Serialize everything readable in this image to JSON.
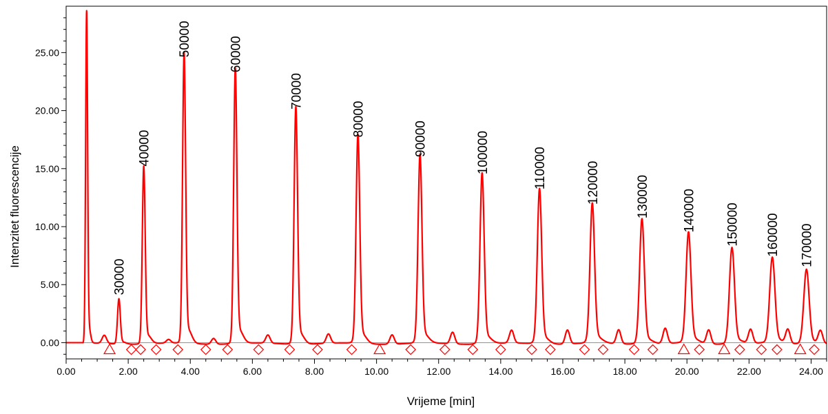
{
  "chart_data": {
    "type": "line",
    "title": "",
    "xlabel": "Vrijeme [min]",
    "ylabel": "Intenzitet fluorescencije",
    "xlim": [
      0,
      24.5
    ],
    "ylim": [
      -1.4,
      29.0
    ],
    "x_ticks": [
      "0.00",
      "2.00",
      "4.00",
      "6.00",
      "8.00",
      "10.00",
      "12.00",
      "14.00",
      "16.00",
      "18.00",
      "20.00",
      "22.00",
      "24.00"
    ],
    "y_ticks": [
      "0.00",
      "5.00",
      "10.00",
      "15.00",
      "20.00",
      "25.00"
    ],
    "grid": false,
    "legend": "none",
    "colors": {
      "trace": "#ff0000",
      "axis": "#000000",
      "markers": "#ff0000"
    },
    "baseline": 0.0,
    "solvent_peak": {
      "x": 0.66,
      "y": 28.3
    },
    "peaks": [
      {
        "label": "30000",
        "x": 1.7,
        "y": 3.8
      },
      {
        "label": "40000",
        "x": 2.5,
        "y": 14.9
      },
      {
        "label": "50000",
        "x": 3.8,
        "y": 24.3
      },
      {
        "label": "60000",
        "x": 5.45,
        "y": 23.0
      },
      {
        "label": "70000",
        "x": 7.4,
        "y": 19.8
      },
      {
        "label": "80000",
        "x": 9.4,
        "y": 17.4
      },
      {
        "label": "90000",
        "x": 11.4,
        "y": 15.7
      },
      {
        "label": "100000",
        "x": 13.4,
        "y": 14.2
      },
      {
        "label": "110000",
        "x": 15.25,
        "y": 12.9
      },
      {
        "label": "120000",
        "x": 16.95,
        "y": 11.6
      },
      {
        "label": "130000",
        "x": 18.55,
        "y": 10.4
      },
      {
        "label": "140000",
        "x": 20.05,
        "y": 9.2
      },
      {
        "label": "150000",
        "x": 21.45,
        "y": 8.0
      },
      {
        "label": "160000",
        "x": 22.75,
        "y": 7.1
      },
      {
        "label": "170000",
        "x": 23.85,
        "y": 6.2
      }
    ],
    "minor_peaks": [
      {
        "x": 1.23,
        "y": 0.7
      },
      {
        "x": 3.3,
        "y": 0.3
      },
      {
        "x": 4.75,
        "y": 0.5
      },
      {
        "x": 6.5,
        "y": 0.7
      },
      {
        "x": 8.45,
        "y": 0.8
      },
      {
        "x": 10.5,
        "y": 0.8
      },
      {
        "x": 12.45,
        "y": 1.0
      },
      {
        "x": 14.35,
        "y": 1.1
      },
      {
        "x": 16.15,
        "y": 1.2
      },
      {
        "x": 17.8,
        "y": 1.2
      },
      {
        "x": 19.3,
        "y": 1.3
      },
      {
        "x": 20.7,
        "y": 1.2
      },
      {
        "x": 22.05,
        "y": 1.2
      },
      {
        "x": 23.25,
        "y": 1.2
      },
      {
        "x": 24.3,
        "y": 1.1
      }
    ],
    "triangle_markers": [
      1.4,
      10.1,
      19.9,
      21.2,
      23.65
    ],
    "diamond_markers": [
      2.1,
      2.4,
      2.9,
      3.6,
      4.5,
      5.2,
      6.2,
      7.2,
      8.1,
      9.2,
      11.1,
      12.2,
      13.1,
      14.0,
      15.0,
      15.6,
      16.7,
      17.3,
      18.3,
      18.9,
      20.4,
      21.7,
      22.4,
      22.9,
      24.1
    ]
  }
}
